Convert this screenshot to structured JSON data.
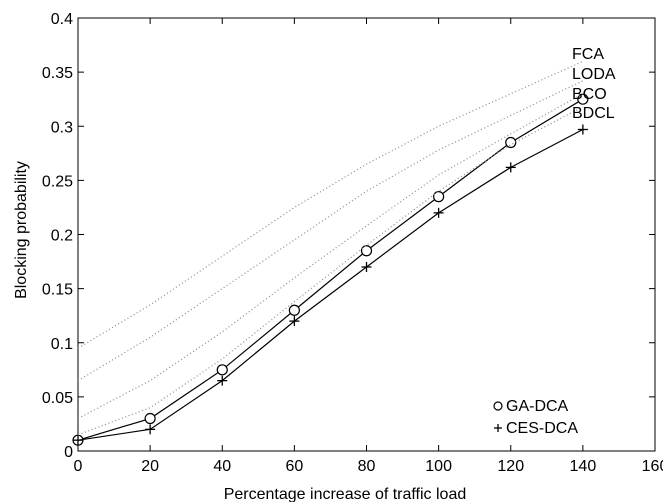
{
  "chart_data": {
    "type": "line",
    "title": "",
    "xlabel": "Percentage increase of traffic load",
    "ylabel": "Blocking probability",
    "xlim": [
      0,
      160
    ],
    "ylim": [
      0,
      0.4
    ],
    "x_ticks": [
      0,
      20,
      40,
      60,
      80,
      100,
      120,
      140,
      160
    ],
    "y_ticks": [
      0,
      0.05,
      0.1,
      0.15,
      0.2,
      0.25,
      0.3,
      0.35,
      0.4
    ],
    "x_tick_labels": [
      "0",
      "20",
      "40",
      "60",
      "80",
      "100",
      "120",
      "140",
      "160"
    ],
    "y_tick_labels": [
      "0",
      "0.05",
      "0.1",
      "0.15",
      "0.2",
      "0.25",
      "0.3",
      "0.35",
      "0.4"
    ],
    "grid": false,
    "legend_position": "bottom-right",
    "series": [
      {
        "name": "GA-DCA",
        "marker": "o",
        "style": "solid",
        "color": "#000000",
        "x": [
          0,
          20,
          40,
          60,
          80,
          100,
          120,
          140
        ],
        "y": [
          0.01,
          0.03,
          0.075,
          0.13,
          0.185,
          0.235,
          0.285,
          0.325
        ]
      },
      {
        "name": "CES-DCA",
        "marker": "+",
        "style": "solid",
        "color": "#000000",
        "x": [
          0,
          20,
          40,
          60,
          80,
          100,
          120,
          140
        ],
        "y": [
          0.01,
          0.02,
          0.065,
          0.12,
          0.17,
          0.22,
          0.262,
          0.297
        ]
      },
      {
        "name": "FCA",
        "marker": "",
        "style": "dotted",
        "color": "#9a9a9a",
        "x": [
          0,
          20,
          40,
          60,
          80,
          100,
          120,
          140
        ],
        "y": [
          0.095,
          0.135,
          0.18,
          0.225,
          0.265,
          0.3,
          0.33,
          0.36
        ]
      },
      {
        "name": "LODA",
        "marker": "",
        "style": "dotted",
        "color": "#9a9a9a",
        "x": [
          0,
          20,
          40,
          60,
          80,
          100,
          120,
          140
        ],
        "y": [
          0.065,
          0.105,
          0.15,
          0.195,
          0.24,
          0.278,
          0.31,
          0.342
        ]
      },
      {
        "name": "BCO",
        "marker": "",
        "style": "dotted",
        "color": "#9a9a9a",
        "x": [
          0,
          20,
          40,
          60,
          80,
          100,
          120,
          140
        ],
        "y": [
          0.03,
          0.065,
          0.11,
          0.16,
          0.208,
          0.255,
          0.293,
          0.33
        ]
      },
      {
        "name": "BDCL",
        "marker": "",
        "style": "dotted",
        "color": "#9a9a9a",
        "x": [
          0,
          20,
          40,
          60,
          80,
          100,
          120,
          140
        ],
        "y": [
          0.015,
          0.04,
          0.085,
          0.138,
          0.19,
          0.24,
          0.283,
          0.318
        ]
      }
    ],
    "curve_labels": [
      "FCA",
      "LODA",
      "BCO",
      "BDCL"
    ],
    "legend": [
      {
        "symbol": "o",
        "label": "GA-DCA"
      },
      {
        "symbol": "+",
        "label": "CES-DCA"
      }
    ]
  }
}
